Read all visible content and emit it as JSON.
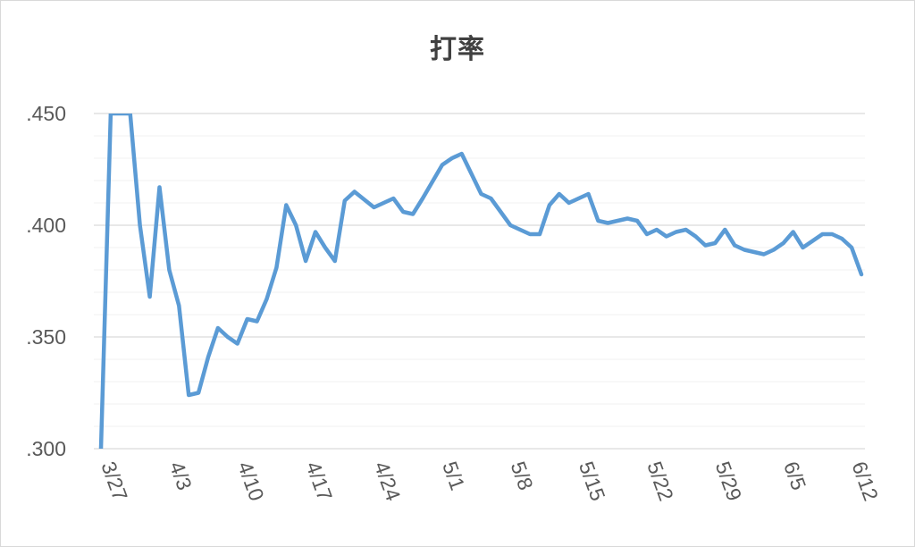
{
  "chart_data": {
    "type": "line",
    "title": "打率",
    "xlabel": "",
    "ylabel": "",
    "ylim": [
      0.3,
      0.45
    ],
    "y_ticks": [
      {
        "value": 0.3,
        "label": ".300"
      },
      {
        "value": 0.35,
        "label": ".350"
      },
      {
        "value": 0.4,
        "label": ".400"
      },
      {
        "value": 0.45,
        "label": ".450"
      }
    ],
    "minor_grid_step": 0.01,
    "x_start": "3/27",
    "x_end": "6/13",
    "x_tick_labels": [
      "3/27",
      "4/3",
      "4/10",
      "4/17",
      "4/24",
      "5/1",
      "5/8",
      "5/15",
      "5/22",
      "5/29",
      "6/5",
      "6/12"
    ],
    "grid": true,
    "legend": "none",
    "line_color": "#5b9bd5",
    "series": [
      {
        "x": [
          "3/27",
          "3/28",
          "3/30",
          "3/31",
          "4/1",
          "4/2",
          "4/3",
          "4/4",
          "4/5",
          "4/6",
          "4/7",
          "4/8",
          "4/9",
          "4/10",
          "4/11",
          "4/12",
          "4/13",
          "4/14",
          "4/15",
          "4/16",
          "4/17",
          "4/18",
          "4/19",
          "4/20",
          "4/21",
          "4/22",
          "4/24",
          "4/25",
          "4/26",
          "4/27",
          "4/28",
          "4/29",
          "5/1",
          "5/2",
          "5/3",
          "5/4",
          "5/5",
          "5/6",
          "5/8",
          "5/9",
          "5/10",
          "5/11",
          "5/12",
          "5/13",
          "5/14",
          "5/15",
          "5/16",
          "5/17",
          "5/18",
          "5/19",
          "5/20",
          "5/21",
          "5/22",
          "5/23",
          "5/24",
          "5/25",
          "5/26",
          "5/27",
          "5/28",
          "5/29",
          "5/30",
          "5/31",
          "6/1",
          "6/3",
          "6/4",
          "6/5",
          "6/6",
          "6/7",
          "6/9",
          "6/10",
          "6/11",
          "6/12",
          "6/13"
        ],
        "values": [
          0.3,
          0.45,
          0.45,
          0.4,
          0.368,
          0.417,
          0.38,
          0.364,
          0.324,
          0.325,
          0.341,
          0.354,
          0.35,
          0.347,
          0.358,
          0.357,
          0.367,
          0.381,
          0.409,
          0.4,
          0.384,
          0.397,
          0.39,
          0.384,
          0.411,
          0.415,
          0.408,
          0.41,
          0.412,
          0.406,
          0.405,
          0.412,
          0.427,
          0.43,
          0.432,
          0.423,
          0.414,
          0.412,
          0.4,
          0.398,
          0.396,
          0.396,
          0.409,
          0.414,
          0.41,
          0.412,
          0.414,
          0.402,
          0.401,
          0.402,
          0.403,
          0.402,
          0.396,
          0.398,
          0.395,
          0.397,
          0.398,
          0.395,
          0.391,
          0.392,
          0.398,
          0.391,
          0.389,
          0.387,
          0.389,
          0.392,
          0.397,
          0.39,
          0.396,
          0.396,
          0.394,
          0.39,
          0.378
        ]
      }
    ]
  }
}
